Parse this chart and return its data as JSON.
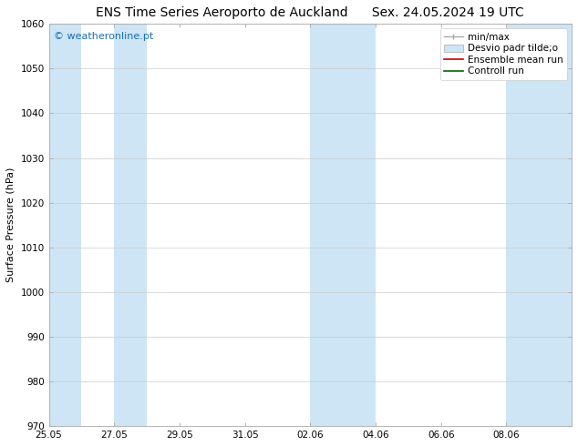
{
  "title_left": "ENS Time Series Aeroporto de Auckland",
  "title_right": "Sex. 24.05.2024 19 UTC",
  "ylabel": "Surface Pressure (hPa)",
  "ylim": [
    970,
    1060
  ],
  "yticks": [
    970,
    980,
    990,
    1000,
    1010,
    1020,
    1030,
    1040,
    1050,
    1060
  ],
  "xtick_labels": [
    "25.05",
    "27.05",
    "29.05",
    "31.05",
    "02.06",
    "04.06",
    "06.06",
    "08.06"
  ],
  "watermark": "© weatheronline.pt",
  "watermark_color": "#1a6faf",
  "bg_color": "#ffffff",
  "plot_bg_color": "#ffffff",
  "shaded_bands": [
    {
      "x_start": 0,
      "x_end": 1,
      "color": "#cde5f5"
    },
    {
      "x_start": 2,
      "x_end": 3,
      "color": "#cde5f5"
    },
    {
      "x_start": 8,
      "x_end": 9,
      "color": "#cde5f5"
    },
    {
      "x_start": 9,
      "x_end": 10,
      "color": "#cde5f5"
    },
    {
      "x_start": 14,
      "x_end": 15,
      "color": "#cde5f5"
    },
    {
      "x_start": 15,
      "x_end": 16,
      "color": "#cde5f5"
    }
  ],
  "xlim": [
    0,
    16
  ],
  "xtick_positions": [
    0,
    2,
    4,
    6,
    8,
    10,
    12,
    14
  ],
  "legend_entries": [
    {
      "label": "min/max",
      "color": "#aaaaaa",
      "style": "errorbar"
    },
    {
      "label": "Desvio padr tilde;o",
      "color": "#cde5f5",
      "style": "band"
    },
    {
      "label": "Ensemble mean run",
      "color": "#cc0000",
      "style": "line"
    },
    {
      "label": "Controll run",
      "color": "#006600",
      "style": "line"
    }
  ],
  "font_size_title": 10,
  "font_size_axis_label": 8,
  "font_size_tick": 7.5,
  "font_size_legend": 7.5,
  "font_size_watermark": 8
}
